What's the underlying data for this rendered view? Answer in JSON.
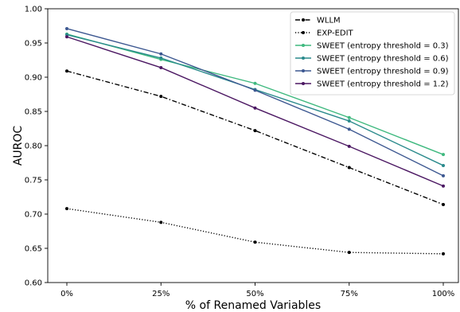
{
  "chart_data": {
    "type": "line",
    "xlabel": "% of Renamed Variables",
    "ylabel": "AUROC",
    "x": [
      "0%",
      "25%",
      "50%",
      "75%",
      "100%"
    ],
    "ylim": [
      0.6,
      1.0
    ],
    "yticks": [
      "0.60",
      "0.65",
      "0.70",
      "0.75",
      "0.80",
      "0.85",
      "0.90",
      "0.95",
      "1.00"
    ],
    "grid": false,
    "legend_position": "top-right",
    "series": [
      {
        "name": "WLLM",
        "values": [
          0.909,
          0.872,
          0.822,
          0.768,
          0.714
        ],
        "color": "#000000",
        "dash": "dashdot"
      },
      {
        "name": "EXP-EDIT",
        "values": [
          0.708,
          0.688,
          0.659,
          0.644,
          0.642
        ],
        "color": "#000000",
        "dash": "dotted"
      },
      {
        "name": "SWEET (entropy threshold = 0.3)",
        "values": [
          0.963,
          0.926,
          0.891,
          0.841,
          0.787
        ],
        "color": "#3fb97f",
        "dash": "solid"
      },
      {
        "name": "SWEET (entropy threshold = 0.6)",
        "values": [
          0.962,
          0.928,
          0.882,
          0.836,
          0.771
        ],
        "color": "#2a8a8c",
        "dash": "solid"
      },
      {
        "name": "SWEET (entropy threshold = 0.9)",
        "values": [
          0.971,
          0.934,
          0.881,
          0.824,
          0.756
        ],
        "color": "#3d5891",
        "dash": "solid"
      },
      {
        "name": "SWEET (entropy threshold = 1.2)",
        "values": [
          0.959,
          0.914,
          0.855,
          0.799,
          0.741
        ],
        "color": "#4b1762",
        "dash": "solid"
      }
    ]
  }
}
